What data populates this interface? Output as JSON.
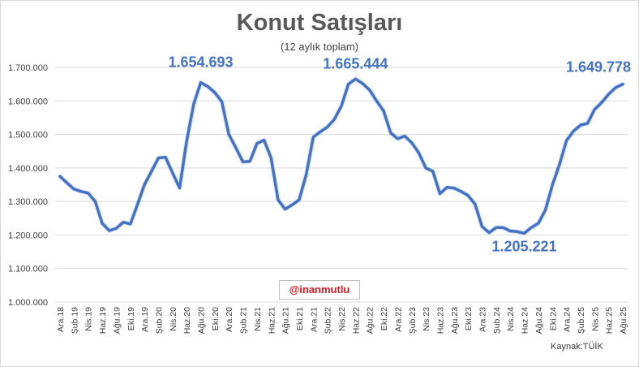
{
  "chart_data": {
    "type": "line",
    "title": "Konut Satışları",
    "subtitle": "(12 aylık toplam)",
    "xlabel": "",
    "ylabel": "",
    "ylim": [
      1000000,
      1700000
    ],
    "yticks": [
      "1.000.000",
      "1.100.000",
      "1.200.000",
      "1.300.000",
      "1.400.000",
      "1.500.000",
      "1.600.000",
      "1.700.000"
    ],
    "grid": true,
    "legend": "none",
    "line_color": "#4472c4",
    "x": [
      "Ara.18",
      "Oca.19",
      "Şub.19",
      "Mar.19",
      "Nis.19",
      "May.19",
      "Haz.19",
      "Tem.19",
      "Ağu.19",
      "Eyl.19",
      "Eki.19",
      "Kas.19",
      "Ara.19",
      "Oca.20",
      "Şub.20",
      "Mar.20",
      "Nis.20",
      "May.20",
      "Haz.20",
      "Tem.20",
      "Ağu.20",
      "Eyl.20",
      "Eki.20",
      "Kas.20",
      "Ara.20",
      "Oca.21",
      "Şub.21",
      "Mar.21",
      "Nis.21",
      "May.21",
      "Haz.21",
      "Tem.21",
      "Ağu.21",
      "Eyl.21",
      "Eki.21",
      "Kas.21",
      "Ara.21",
      "Oca.22",
      "Şub.22",
      "Mar.22",
      "Nis.22",
      "May.22",
      "Haz.22",
      "Tem.22",
      "Ağu.22",
      "Eyl.22",
      "Eki.22",
      "Kas.22",
      "Ara.22",
      "Oca.23",
      "Şub.23",
      "Mar.23",
      "Nis.23",
      "May.23",
      "Haz.23",
      "Tem.23",
      "Ağu.23",
      "Eyl.23",
      "Eki.23",
      "Kas.23",
      "Ara.23",
      "Oca.24",
      "Şub.24",
      "Mar.24",
      "Nis.24",
      "May.24",
      "Haz.24",
      "Tem.24",
      "Ağu.24",
      "Eyl.24",
      "Eki.24",
      "Kas.24",
      "Ara.24",
      "Oca.25",
      "Şub.25",
      "Mar.25",
      "Nis.25",
      "May.25",
      "Haz.25",
      "Tem.25",
      "Ağu.25"
    ],
    "tick_labels": [
      "Ara.18",
      "Şub.19",
      "Nis.19",
      "Haz.19",
      "Ağu.19",
      "Eki.19",
      "Ara.19",
      "Şub.20",
      "Nis.20",
      "Haz.20",
      "Ağu.20",
      "Eki.20",
      "Ara.20",
      "Şub.21",
      "Nis.21",
      "Haz.21",
      "Ağu.21",
      "Eki.21",
      "Ara.21",
      "Şub.22",
      "Nis.22",
      "Haz.22",
      "Ağu.22",
      "Eki.22",
      "Ara.22",
      "Şub.23",
      "Nis.23",
      "Haz.23",
      "Ağu.23",
      "Eki.23",
      "Ara.23",
      "Şub.24",
      "Nis.24",
      "Haz.24",
      "Ağu.24",
      "Eki.24",
      "Ara.24",
      "Şub.25",
      "Nis.25",
      "Haz.25",
      "Ağu.25"
    ],
    "series": [
      {
        "name": "Konut Satışları (12 aylık toplam)",
        "values": [
          1375000,
          1355000,
          1337000,
          1330000,
          1325000,
          1300000,
          1235000,
          1213000,
          1220000,
          1238000,
          1233000,
          1290000,
          1350000,
          1390000,
          1430000,
          1432000,
          1385000,
          1340000,
          1480000,
          1590000,
          1654693,
          1643000,
          1625000,
          1598000,
          1500000,
          1460000,
          1418000,
          1420000,
          1473000,
          1483000,
          1430000,
          1305000,
          1277000,
          1290000,
          1305000,
          1380000,
          1492000,
          1508000,
          1522000,
          1545000,
          1585000,
          1650000,
          1665444,
          1652000,
          1633000,
          1600000,
          1570000,
          1505000,
          1487000,
          1495000,
          1475000,
          1445000,
          1400000,
          1390000,
          1323000,
          1342000,
          1340000,
          1330000,
          1318000,
          1292000,
          1225000,
          1207000,
          1222000,
          1222000,
          1212000,
          1210000,
          1205221,
          1222000,
          1235000,
          1275000,
          1350000,
          1410000,
          1482000,
          1510000,
          1528000,
          1533000,
          1575000,
          1595000,
          1620000,
          1640000,
          1649778
        ]
      }
    ],
    "annotations": [
      {
        "label": "1.654.693",
        "x": "Ağu.20",
        "value": 1654693,
        "position": "above"
      },
      {
        "label": "1.665.444",
        "x": "Haz.22",
        "value": 1665444,
        "position": "above"
      },
      {
        "label": "1.205.221",
        "x": "Haz.24",
        "value": 1205221,
        "position": "below"
      },
      {
        "label": "1.649.778",
        "x": "Ağu.25",
        "value": 1649778,
        "position": "above"
      }
    ]
  },
  "watermark": "@inanmutlu",
  "source": "Kaynak:TÜİK"
}
